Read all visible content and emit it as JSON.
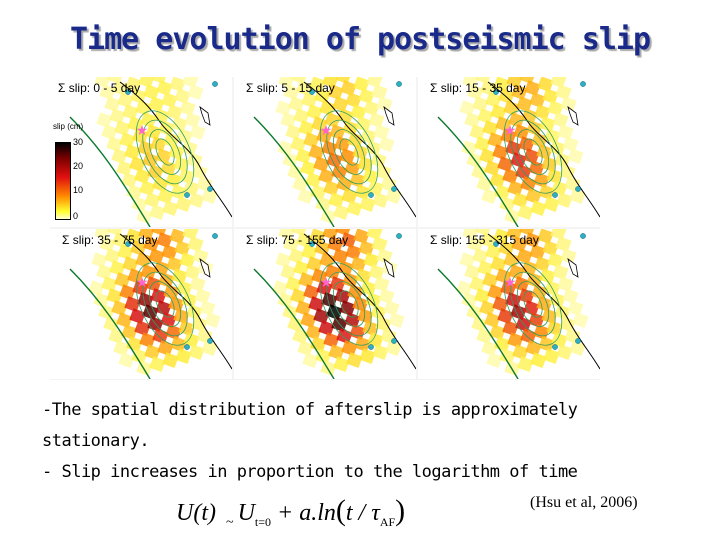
{
  "title": "Time evolution of postseismic slip",
  "colorbar": {
    "label": "slip (cm)",
    "ticks": [
      "30",
      "20",
      "10",
      "0"
    ]
  },
  "panels": [
    {
      "label": "Σ slip: 0 - 5 day",
      "intensity": 0.25
    },
    {
      "label": "Σ slip: 5 - 15 day",
      "intensity": 0.45
    },
    {
      "label": "Σ slip: 15 - 35 day",
      "intensity": 0.6
    },
    {
      "label": "Σ slip: 35 - 75 day",
      "intensity": 0.8
    },
    {
      "label": "Σ slip: 75 - 155 day",
      "intensity": 0.9
    },
    {
      "label": "Σ slip: 155 - 315 day",
      "intensity": 0.7
    }
  ],
  "text": {
    "line1": "-The spatial distribution of afterslip is approximately",
    "line2": "stationary.",
    "line3": "- Slip increases in proportion to the logarithm of time"
  },
  "citation": "(Hsu et al, 2006)",
  "formula": {
    "lhs": "U(t)",
    "approx": "~",
    "u0": "U",
    "u0_sub": "t=0",
    "plus": "+ a.ln",
    "arg": "t / τ",
    "arg_sub": "AF"
  },
  "colors": {
    "title": "#1a2a8a",
    "slip_high": "#000000",
    "slip_mid": "#e01010",
    "slip_low": "#ffff30",
    "contour": "#2e9e5e",
    "station": "#2ab0c0"
  }
}
